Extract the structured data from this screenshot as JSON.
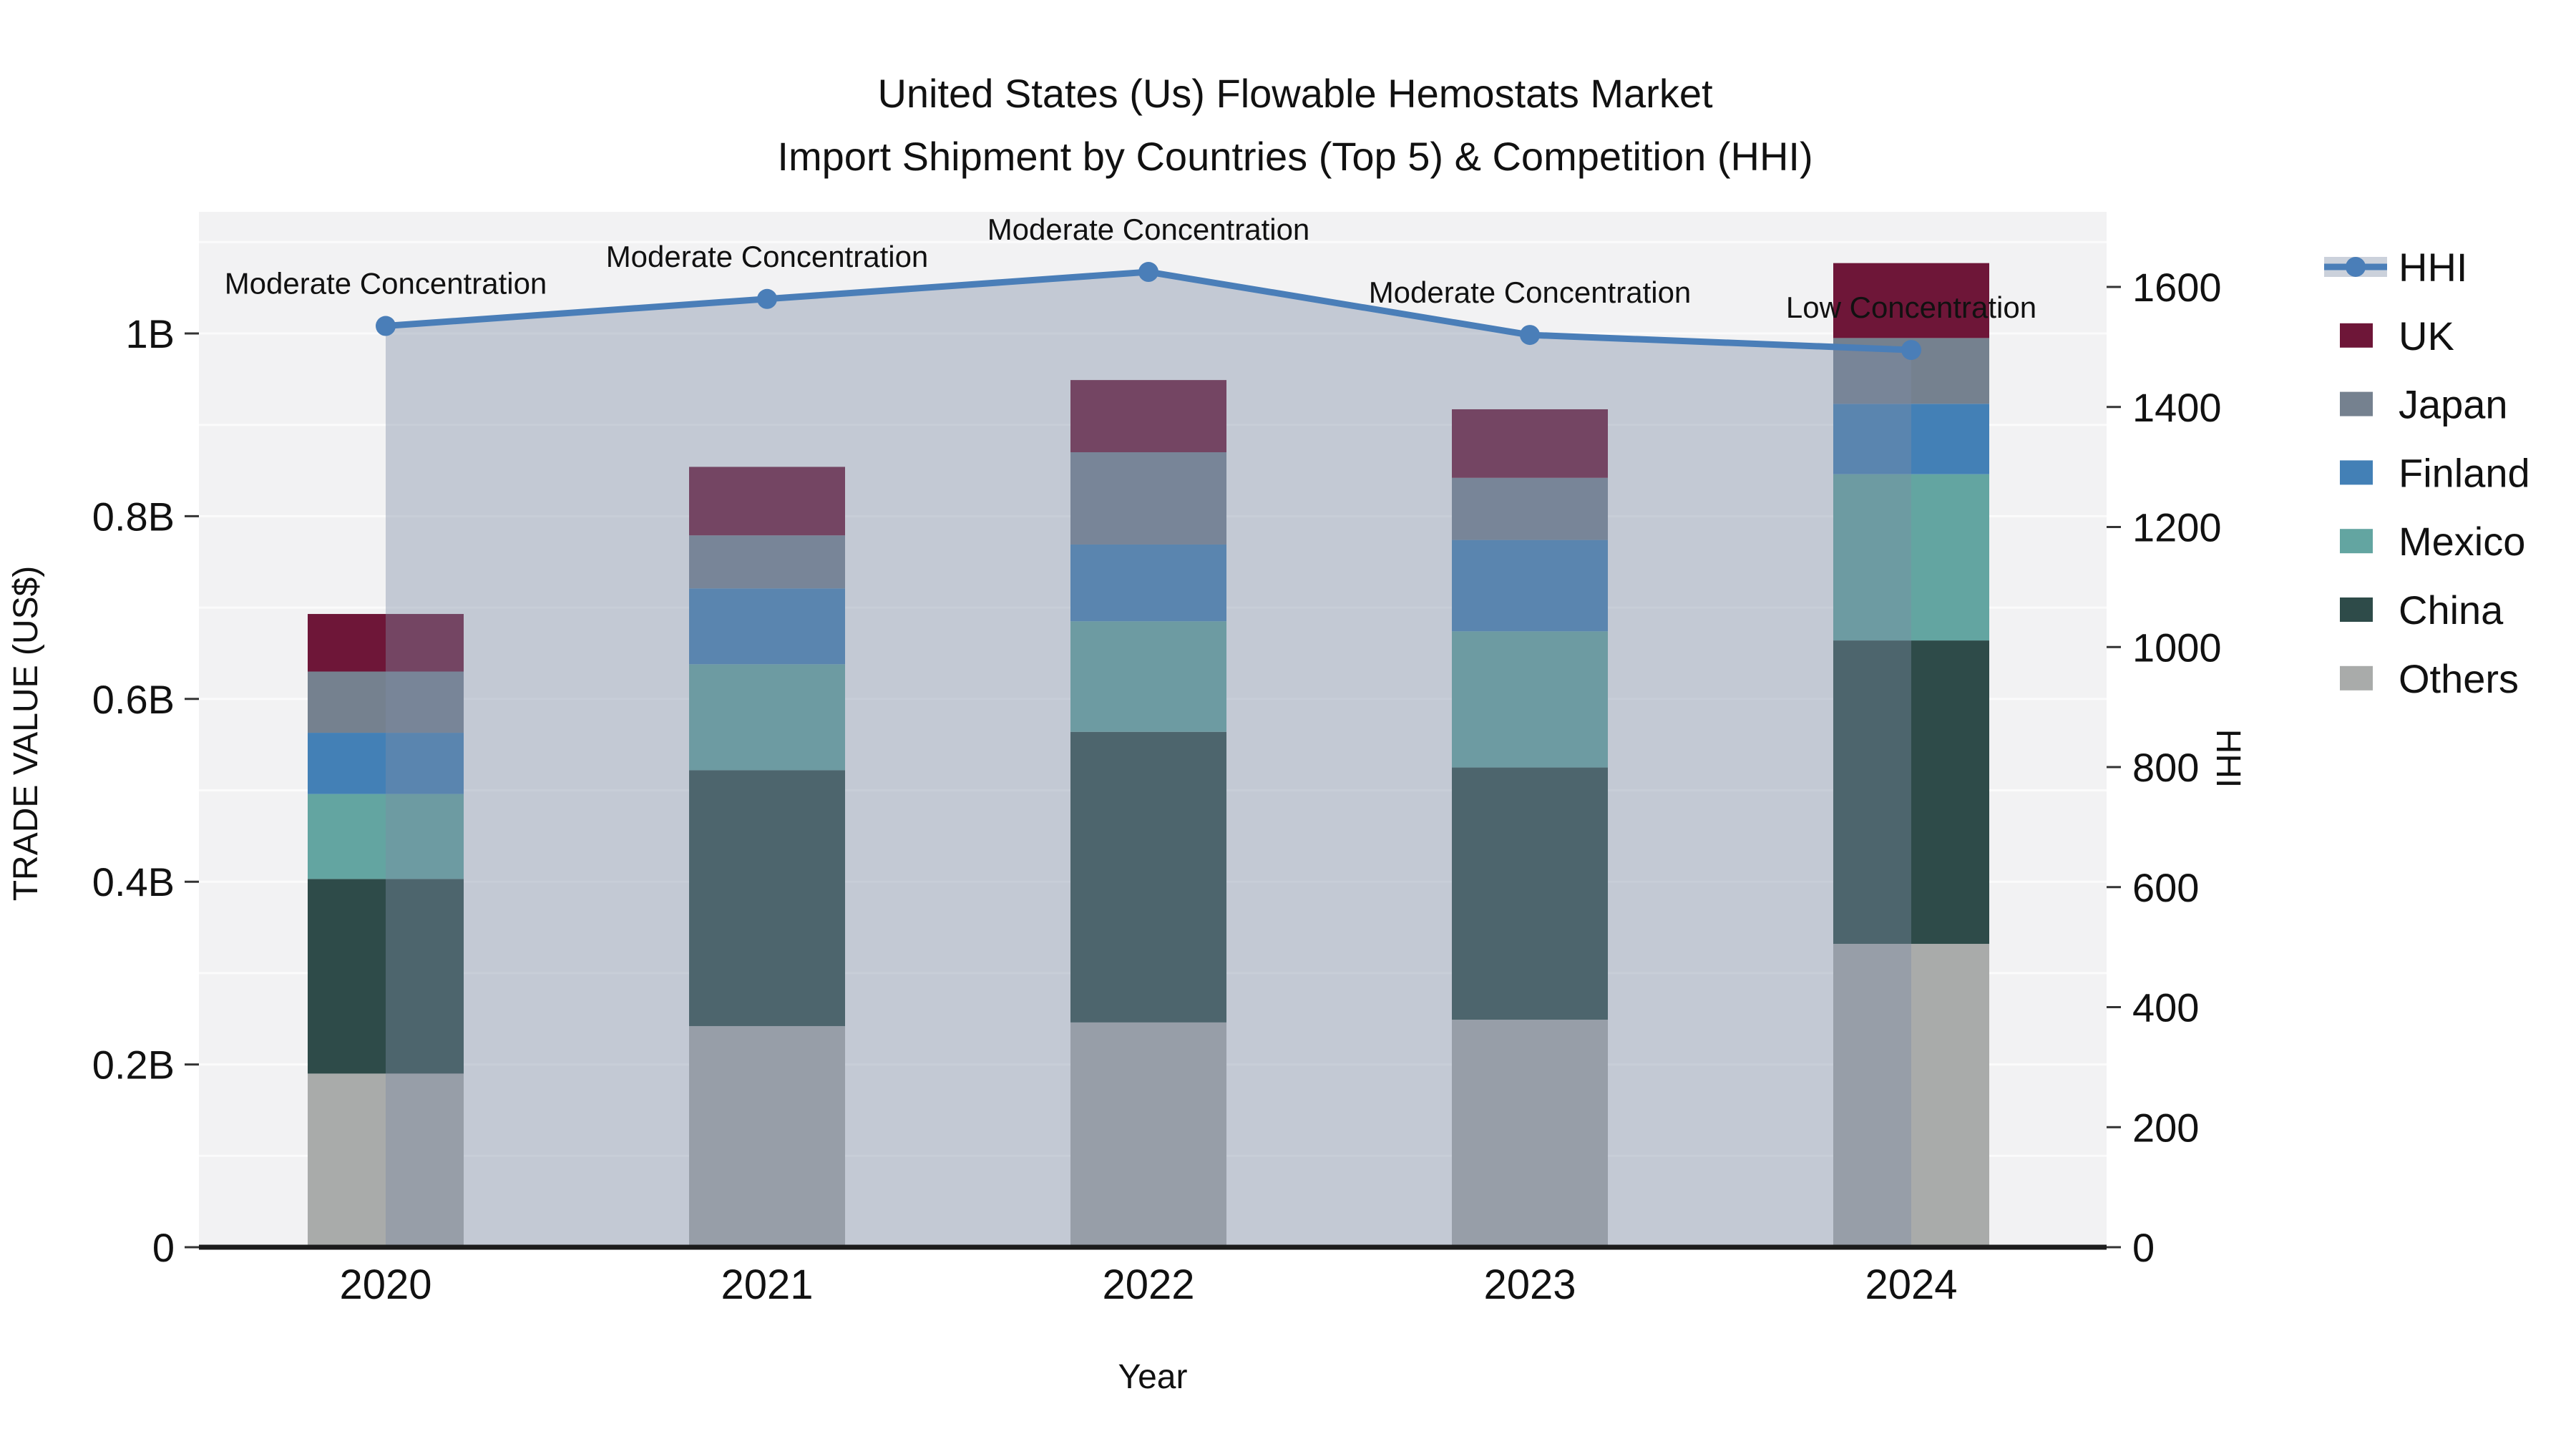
{
  "title": {
    "line1": "United States (Us) Flowable Hemostats Market",
    "line2": "Import Shipment by Countries (Top 5) & Competition (HHI)"
  },
  "axes": {
    "x_label": "Year",
    "y_left_label": "TRADE VALUE (US$)",
    "y_right_label": "HHI",
    "y_left_ticks": [
      "0",
      "0.2B",
      "0.4B",
      "0.6B",
      "0.8B",
      "1B"
    ],
    "y_left_tick_values": [
      0,
      0.2,
      0.4,
      0.6,
      0.8,
      1.0
    ],
    "y_right_ticks": [
      "0",
      "200",
      "400",
      "600",
      "800",
      "1000",
      "1200",
      "1400",
      "1600"
    ],
    "y_right_tick_values": [
      0,
      200,
      400,
      600,
      800,
      1000,
      1200,
      1400,
      1600
    ]
  },
  "chart_data": {
    "type": "bar+line",
    "categories": [
      "2020",
      "2021",
      "2022",
      "2023",
      "2024"
    ],
    "stack_note": "series listed bottom-to-top of stack; values in billions US$",
    "series": [
      {
        "name": "Others",
        "color": "#a9abaa",
        "values": [
          0.19,
          0.242,
          0.246,
          0.249,
          0.332
        ]
      },
      {
        "name": "China",
        "color": "#2e4b49",
        "values": [
          0.213,
          0.28,
          0.318,
          0.276,
          0.332
        ]
      },
      {
        "name": "Mexico",
        "color": "#63a5a1",
        "values": [
          0.093,
          0.116,
          0.121,
          0.149,
          0.182
        ]
      },
      {
        "name": "Finland",
        "color": "#4380b6",
        "values": [
          0.067,
          0.083,
          0.084,
          0.1,
          0.077
        ]
      },
      {
        "name": "Japan",
        "color": "#75818f",
        "values": [
          0.067,
          0.058,
          0.101,
          0.068,
          0.072
        ]
      },
      {
        "name": "UK",
        "color": "#6e1638",
        "values": [
          0.063,
          0.075,
          0.079,
          0.075,
          0.082
        ]
      }
    ],
    "line": {
      "name": "HHI",
      "color": "#4a7eb8",
      "fill_color": "rgba(125,140,165,0.40)",
      "values": [
        1535,
        1580,
        1625,
        1520,
        1495
      ]
    },
    "annotations": [
      {
        "category": "2020",
        "text": "Moderate Concentration"
      },
      {
        "category": "2021",
        "text": "Moderate Concentration"
      },
      {
        "category": "2022",
        "text": "Moderate Concentration"
      },
      {
        "category": "2023",
        "text": "Moderate Concentration"
      },
      {
        "category": "2024",
        "text": "Low Concentration"
      }
    ],
    "ylim_left": [
      0,
      1.135
    ],
    "ylim_right": [
      0,
      1722
    ],
    "grid": {
      "show": true,
      "step": 0.1,
      "color": "rgba(255,255,255,0.65)"
    },
    "plot_bg": "#f2f2f3",
    "axis_line_color": "#1c1c1c",
    "legend_position": "right"
  },
  "legend": {
    "items": [
      {
        "label": "HHI",
        "type": "line",
        "color": "#4a7eb8"
      },
      {
        "label": "UK",
        "type": "swatch",
        "color": "#6e1638"
      },
      {
        "label": "Japan",
        "type": "swatch",
        "color": "#75818f"
      },
      {
        "label": "Finland",
        "type": "swatch",
        "color": "#4380b6"
      },
      {
        "label": "Mexico",
        "type": "swatch",
        "color": "#63a5a1"
      },
      {
        "label": "China",
        "type": "swatch",
        "color": "#2e4b49"
      },
      {
        "label": "Others",
        "type": "swatch",
        "color": "#a9abaa"
      }
    ]
  }
}
